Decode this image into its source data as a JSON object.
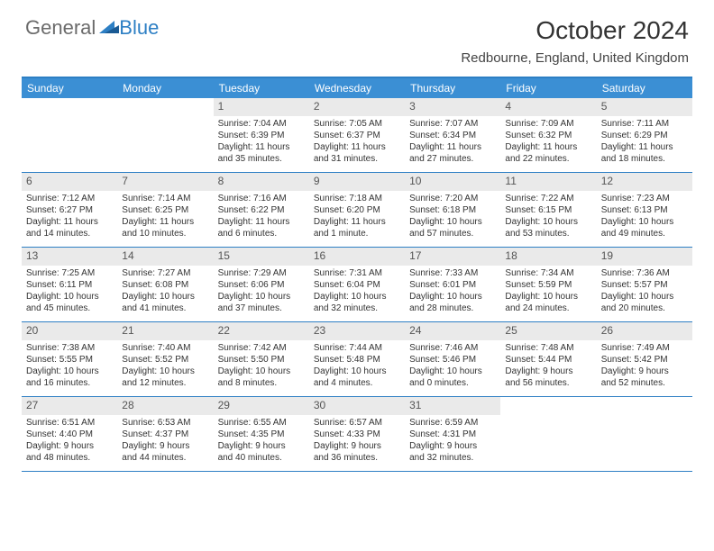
{
  "logo": {
    "text1": "General",
    "text2": "Blue"
  },
  "title": "October 2024",
  "location": "Redbourne, England, United Kingdom",
  "colors": {
    "header_bar": "#3b8fd4",
    "border": "#2d7fc4",
    "daynum_bg": "#eaeaea",
    "logo_gray": "#6b6b6b",
    "logo_blue": "#2d7fc4"
  },
  "days_of_week": [
    "Sunday",
    "Monday",
    "Tuesday",
    "Wednesday",
    "Thursday",
    "Friday",
    "Saturday"
  ],
  "weeks": [
    [
      {
        "empty": true
      },
      {
        "empty": true
      },
      {
        "n": "1",
        "sunrise": "Sunrise: 7:04 AM",
        "sunset": "Sunset: 6:39 PM",
        "day1": "Daylight: 11 hours",
        "day2": "and 35 minutes."
      },
      {
        "n": "2",
        "sunrise": "Sunrise: 7:05 AM",
        "sunset": "Sunset: 6:37 PM",
        "day1": "Daylight: 11 hours",
        "day2": "and 31 minutes."
      },
      {
        "n": "3",
        "sunrise": "Sunrise: 7:07 AM",
        "sunset": "Sunset: 6:34 PM",
        "day1": "Daylight: 11 hours",
        "day2": "and 27 minutes."
      },
      {
        "n": "4",
        "sunrise": "Sunrise: 7:09 AM",
        "sunset": "Sunset: 6:32 PM",
        "day1": "Daylight: 11 hours",
        "day2": "and 22 minutes."
      },
      {
        "n": "5",
        "sunrise": "Sunrise: 7:11 AM",
        "sunset": "Sunset: 6:29 PM",
        "day1": "Daylight: 11 hours",
        "day2": "and 18 minutes."
      }
    ],
    [
      {
        "n": "6",
        "sunrise": "Sunrise: 7:12 AM",
        "sunset": "Sunset: 6:27 PM",
        "day1": "Daylight: 11 hours",
        "day2": "and 14 minutes."
      },
      {
        "n": "7",
        "sunrise": "Sunrise: 7:14 AM",
        "sunset": "Sunset: 6:25 PM",
        "day1": "Daylight: 11 hours",
        "day2": "and 10 minutes."
      },
      {
        "n": "8",
        "sunrise": "Sunrise: 7:16 AM",
        "sunset": "Sunset: 6:22 PM",
        "day1": "Daylight: 11 hours",
        "day2": "and 6 minutes."
      },
      {
        "n": "9",
        "sunrise": "Sunrise: 7:18 AM",
        "sunset": "Sunset: 6:20 PM",
        "day1": "Daylight: 11 hours",
        "day2": "and 1 minute."
      },
      {
        "n": "10",
        "sunrise": "Sunrise: 7:20 AM",
        "sunset": "Sunset: 6:18 PM",
        "day1": "Daylight: 10 hours",
        "day2": "and 57 minutes."
      },
      {
        "n": "11",
        "sunrise": "Sunrise: 7:22 AM",
        "sunset": "Sunset: 6:15 PM",
        "day1": "Daylight: 10 hours",
        "day2": "and 53 minutes."
      },
      {
        "n": "12",
        "sunrise": "Sunrise: 7:23 AM",
        "sunset": "Sunset: 6:13 PM",
        "day1": "Daylight: 10 hours",
        "day2": "and 49 minutes."
      }
    ],
    [
      {
        "n": "13",
        "sunrise": "Sunrise: 7:25 AM",
        "sunset": "Sunset: 6:11 PM",
        "day1": "Daylight: 10 hours",
        "day2": "and 45 minutes."
      },
      {
        "n": "14",
        "sunrise": "Sunrise: 7:27 AM",
        "sunset": "Sunset: 6:08 PM",
        "day1": "Daylight: 10 hours",
        "day2": "and 41 minutes."
      },
      {
        "n": "15",
        "sunrise": "Sunrise: 7:29 AM",
        "sunset": "Sunset: 6:06 PM",
        "day1": "Daylight: 10 hours",
        "day2": "and 37 minutes."
      },
      {
        "n": "16",
        "sunrise": "Sunrise: 7:31 AM",
        "sunset": "Sunset: 6:04 PM",
        "day1": "Daylight: 10 hours",
        "day2": "and 32 minutes."
      },
      {
        "n": "17",
        "sunrise": "Sunrise: 7:33 AM",
        "sunset": "Sunset: 6:01 PM",
        "day1": "Daylight: 10 hours",
        "day2": "and 28 minutes."
      },
      {
        "n": "18",
        "sunrise": "Sunrise: 7:34 AM",
        "sunset": "Sunset: 5:59 PM",
        "day1": "Daylight: 10 hours",
        "day2": "and 24 minutes."
      },
      {
        "n": "19",
        "sunrise": "Sunrise: 7:36 AM",
        "sunset": "Sunset: 5:57 PM",
        "day1": "Daylight: 10 hours",
        "day2": "and 20 minutes."
      }
    ],
    [
      {
        "n": "20",
        "sunrise": "Sunrise: 7:38 AM",
        "sunset": "Sunset: 5:55 PM",
        "day1": "Daylight: 10 hours",
        "day2": "and 16 minutes."
      },
      {
        "n": "21",
        "sunrise": "Sunrise: 7:40 AM",
        "sunset": "Sunset: 5:52 PM",
        "day1": "Daylight: 10 hours",
        "day2": "and 12 minutes."
      },
      {
        "n": "22",
        "sunrise": "Sunrise: 7:42 AM",
        "sunset": "Sunset: 5:50 PM",
        "day1": "Daylight: 10 hours",
        "day2": "and 8 minutes."
      },
      {
        "n": "23",
        "sunrise": "Sunrise: 7:44 AM",
        "sunset": "Sunset: 5:48 PM",
        "day1": "Daylight: 10 hours",
        "day2": "and 4 minutes."
      },
      {
        "n": "24",
        "sunrise": "Sunrise: 7:46 AM",
        "sunset": "Sunset: 5:46 PM",
        "day1": "Daylight: 10 hours",
        "day2": "and 0 minutes."
      },
      {
        "n": "25",
        "sunrise": "Sunrise: 7:48 AM",
        "sunset": "Sunset: 5:44 PM",
        "day1": "Daylight: 9 hours",
        "day2": "and 56 minutes."
      },
      {
        "n": "26",
        "sunrise": "Sunrise: 7:49 AM",
        "sunset": "Sunset: 5:42 PM",
        "day1": "Daylight: 9 hours",
        "day2": "and 52 minutes."
      }
    ],
    [
      {
        "n": "27",
        "sunrise": "Sunrise: 6:51 AM",
        "sunset": "Sunset: 4:40 PM",
        "day1": "Daylight: 9 hours",
        "day2": "and 48 minutes."
      },
      {
        "n": "28",
        "sunrise": "Sunrise: 6:53 AM",
        "sunset": "Sunset: 4:37 PM",
        "day1": "Daylight: 9 hours",
        "day2": "and 44 minutes."
      },
      {
        "n": "29",
        "sunrise": "Sunrise: 6:55 AM",
        "sunset": "Sunset: 4:35 PM",
        "day1": "Daylight: 9 hours",
        "day2": "and 40 minutes."
      },
      {
        "n": "30",
        "sunrise": "Sunrise: 6:57 AM",
        "sunset": "Sunset: 4:33 PM",
        "day1": "Daylight: 9 hours",
        "day2": "and 36 minutes."
      },
      {
        "n": "31",
        "sunrise": "Sunrise: 6:59 AM",
        "sunset": "Sunset: 4:31 PM",
        "day1": "Daylight: 9 hours",
        "day2": "and 32 minutes."
      },
      {
        "empty": true
      },
      {
        "empty": true
      }
    ]
  ]
}
